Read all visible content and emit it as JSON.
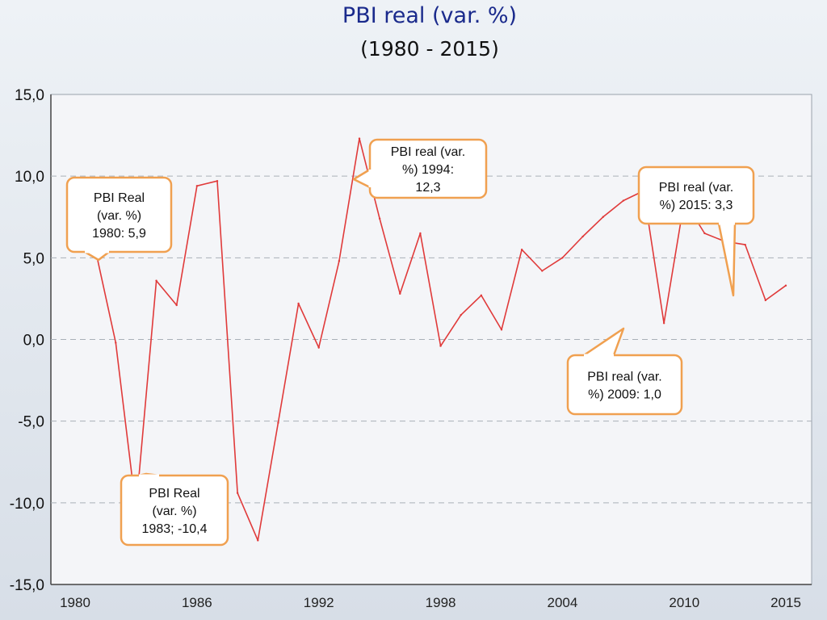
{
  "header": {
    "title": "PBI real (var. %)",
    "subtitle": "(1980 - 2015)"
  },
  "colors": {
    "line": "#e03a3a",
    "callout_border": "#f0a050",
    "grid": "#a9b0b8"
  },
  "chart_data": {
    "type": "line",
    "title": "PBI real (var. %)",
    "subtitle": "(1980 - 2015)",
    "xlabel": "",
    "ylabel": "",
    "xlim": [
      1980,
      2015
    ],
    "ylim": [
      -15,
      15
    ],
    "grid": true,
    "y_ticks": [
      15,
      10,
      5,
      0,
      -5,
      -10,
      -15
    ],
    "y_tick_labels": [
      "15,0",
      "10,0",
      "5,0",
      "0,0",
      "-5,0",
      "-10,0",
      "-15,0"
    ],
    "x_ticks": [
      1980,
      1986,
      1992,
      1998,
      2004,
      2010,
      2015
    ],
    "x_tick_labels": [
      "1980",
      "1986",
      "1992",
      "1998",
      "2004",
      "2010",
      "2015"
    ],
    "x": [
      1980,
      1981,
      1982,
      1983,
      1984,
      1985,
      1986,
      1987,
      1988,
      1989,
      1990,
      1991,
      1992,
      1993,
      1994,
      1995,
      1996,
      1997,
      1998,
      1999,
      2000,
      2001,
      2002,
      2003,
      2004,
      2005,
      2006,
      2007,
      2008,
      2009,
      2010,
      2011,
      2012,
      2013,
      2014,
      2015
    ],
    "series": [
      {
        "values": [
          5.9,
          5.5,
          -0.2,
          -10.4,
          3.6,
          2.1,
          9.4,
          9.7,
          -9.4,
          -12.3,
          -5.1,
          2.2,
          -0.5,
          4.8,
          12.3,
          7.4,
          2.8,
          6.5,
          -0.4,
          1.5,
          2.7,
          0.6,
          5.5,
          4.2,
          5.0,
          6.3,
          7.5,
          8.5,
          9.1,
          1.0,
          8.5,
          6.5,
          6.0,
          5.8,
          2.4,
          3.3
        ]
      }
    ],
    "annotations": [
      {
        "lines": [
          "PBI Real",
          "(var. %)",
          "1980: 5,9"
        ]
      },
      {
        "lines": [
          "PBI Real",
          "(var. %)",
          "1983; -10,4"
        ]
      },
      {
        "lines": [
          "PBI real (var.",
          "%) 1994:",
          "12,3"
        ]
      },
      {
        "lines": [
          "PBI real (var.",
          "%) 2015: 3,3"
        ]
      },
      {
        "lines": [
          "PBI real (var.",
          "%) 2009: 1,0"
        ]
      }
    ]
  }
}
